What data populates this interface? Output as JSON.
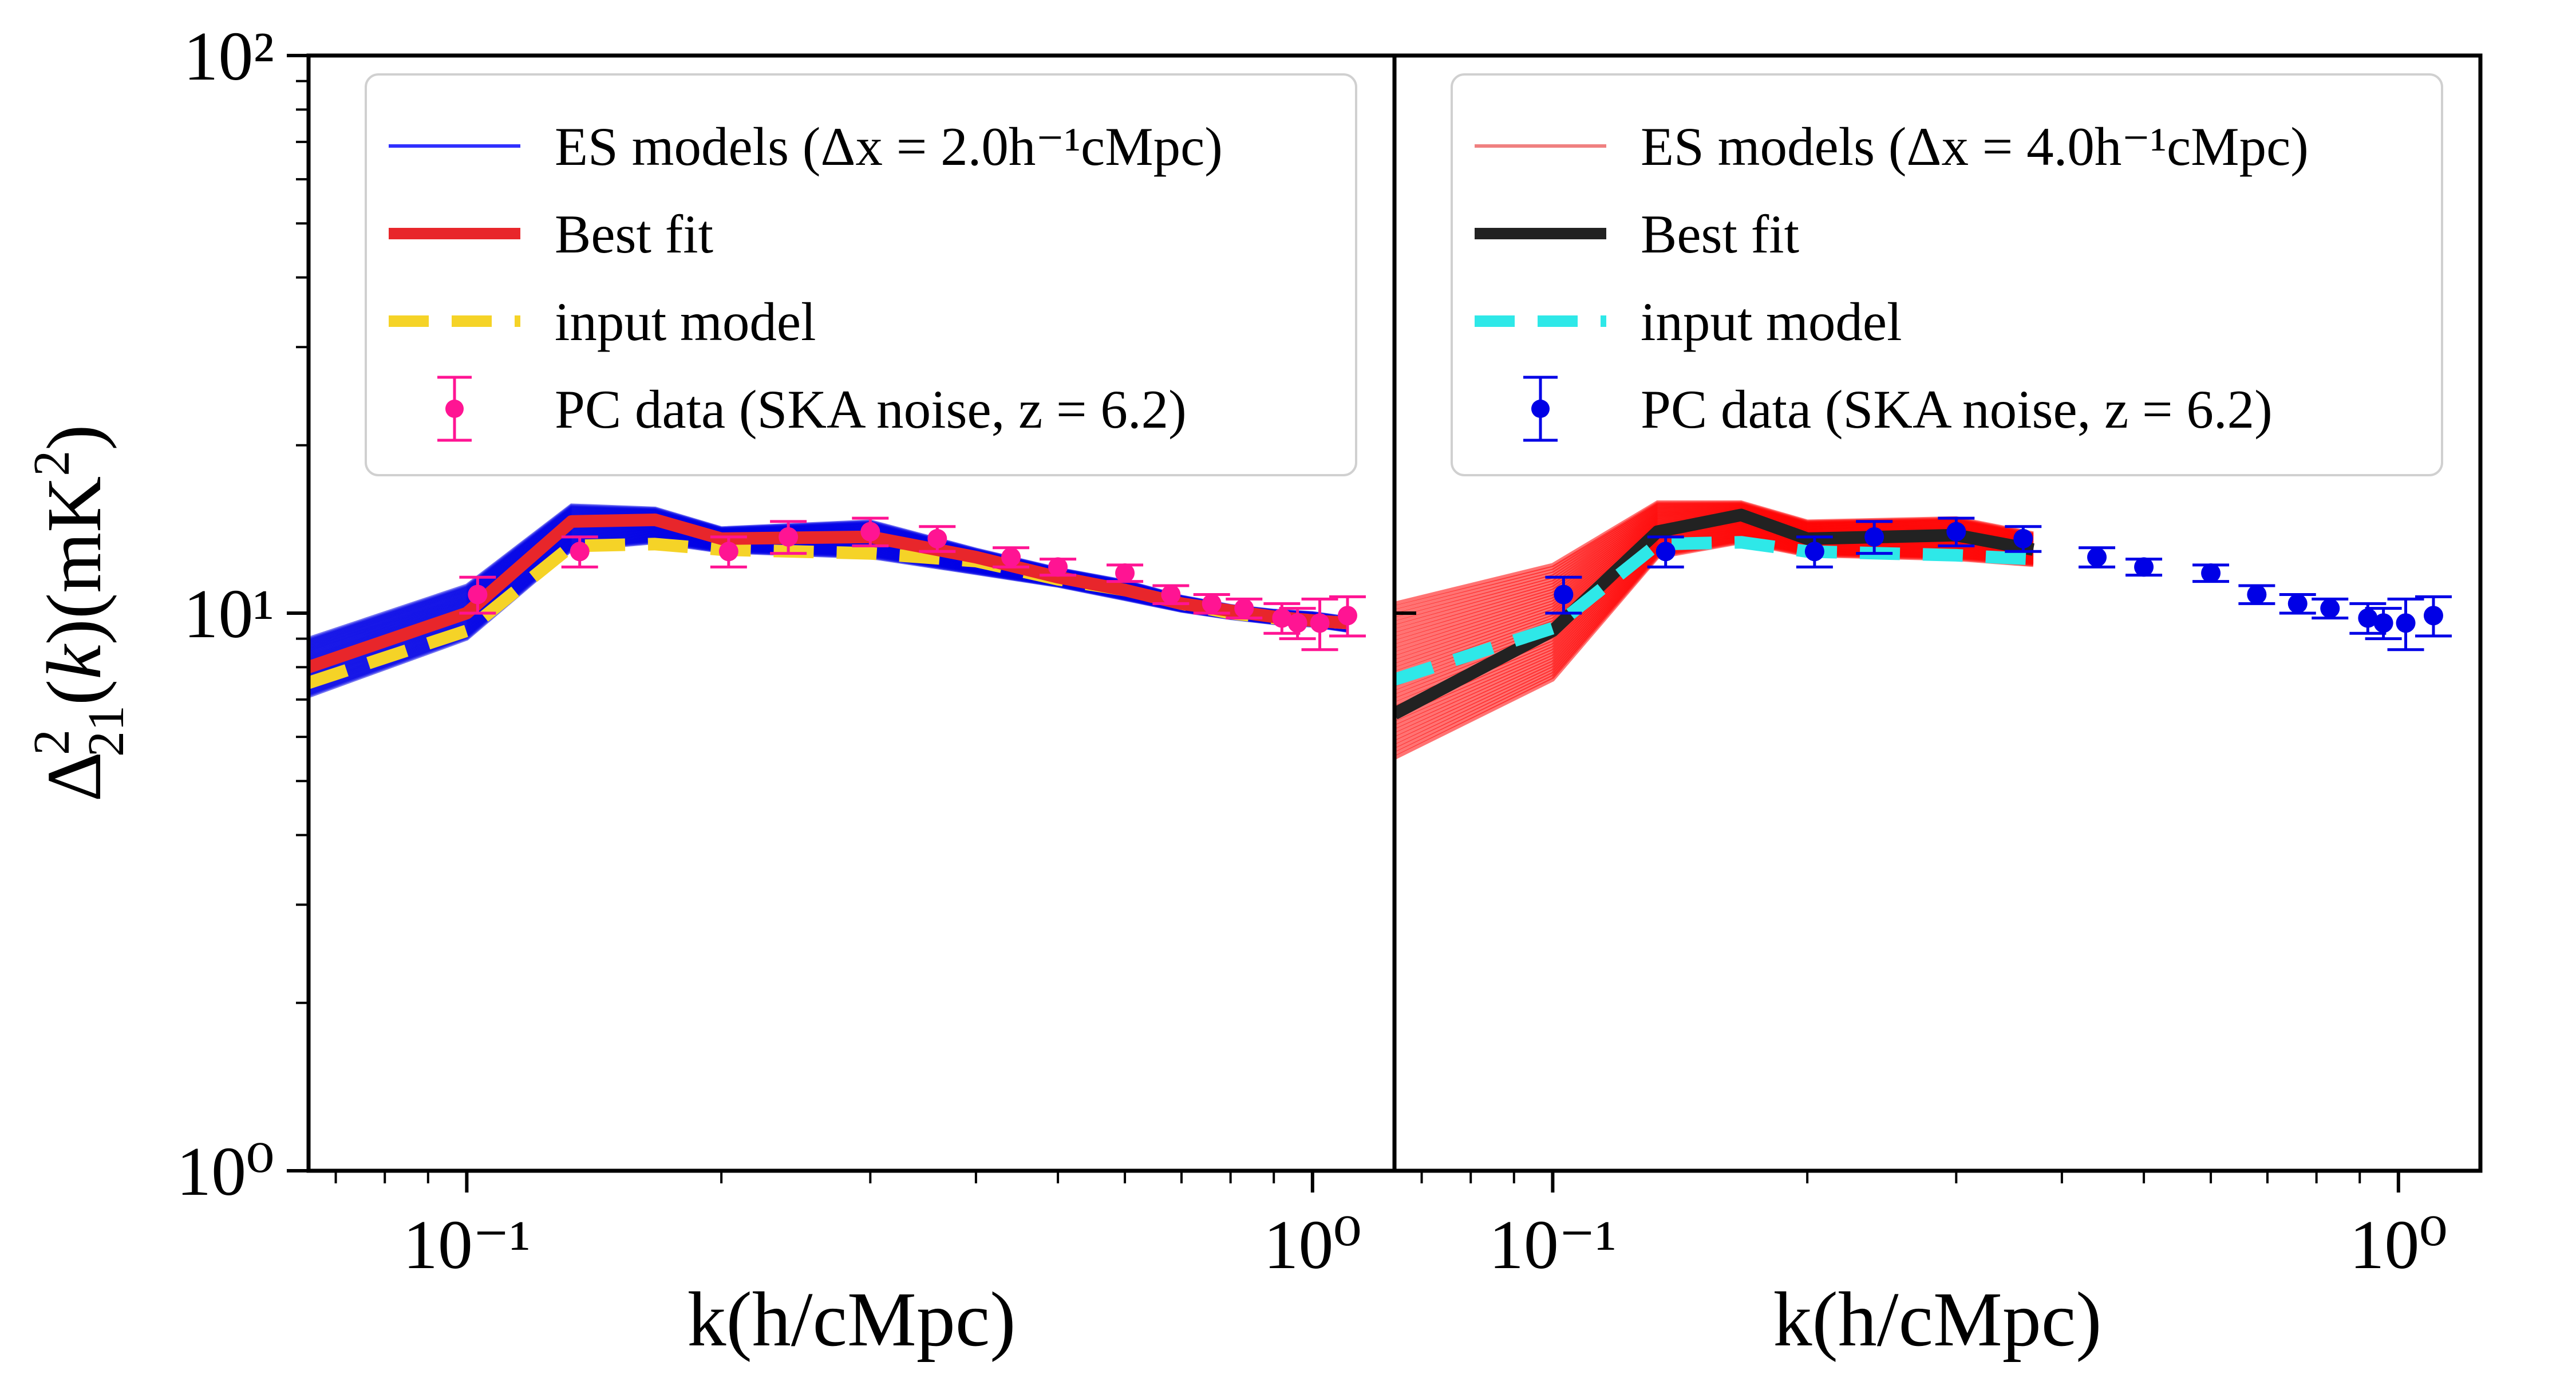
{
  "chart_data": [
    {
      "type": "line",
      "xscale": "log",
      "yscale": "log",
      "xlim": [
        0.065,
        1.25
      ],
      "ylim": [
        1,
        100
      ],
      "grid": false,
      "legend_placement": "top",
      "xlabel": "k(h/cMpc)",
      "ylabel": "Δ²₂₁(k)(mK²)",
      "x_ticks": [
        "10⁻¹",
        "10⁰"
      ],
      "y_ticks": [
        "10⁰",
        "10¹",
        "10²"
      ],
      "legend": [
        {
          "label": "ES models (Δx = 2.0h⁻¹cMpc)",
          "style": "thin",
          "color": "#3030ff"
        },
        {
          "label": "Best fit",
          "style": "solid",
          "color": "#e8262b"
        },
        {
          "label": "input model",
          "style": "dashed",
          "color": "#f5d327"
        },
        {
          "label": "PC data (SKA noise, z = 6.2)",
          "style": "errorbar",
          "color": "#ff1493"
        }
      ],
      "ensemble_band": {
        "color": "#0000e6",
        "x": [
          0.065,
          0.1,
          0.133,
          0.167,
          0.2,
          0.3,
          0.4,
          0.5,
          0.6,
          0.7,
          0.8,
          0.9,
          1.0,
          1.1
        ],
        "upper": [
          9.0,
          11.2,
          15.6,
          15.4,
          14.2,
          14.6,
          13.0,
          12.0,
          11.4,
          10.7,
          10.3,
          10.1,
          10.0,
          9.8
        ],
        "lower": [
          7.1,
          9.0,
          13.0,
          13.4,
          12.9,
          12.6,
          11.8,
          11.2,
          10.6,
          10.1,
          9.8,
          9.6,
          9.5,
          9.3
        ]
      },
      "series": [
        {
          "name": "Best fit",
          "color": "#e8262b",
          "dash": "solid",
          "x": [
            0.065,
            0.1,
            0.133,
            0.167,
            0.2,
            0.3,
            0.4,
            0.5,
            0.6,
            0.7,
            0.8,
            0.9,
            1.0,
            1.1
          ],
          "y": [
            8.0,
            10.0,
            14.6,
            14.7,
            13.6,
            13.7,
            12.6,
            11.6,
            11.0,
            10.4,
            10.1,
            9.85,
            9.7,
            9.6
          ]
        },
        {
          "name": "input model",
          "color": "#f5d327",
          "dash": "dashed",
          "x": [
            0.065,
            0.1,
            0.133,
            0.167,
            0.2,
            0.3,
            0.4,
            0.5,
            0.6,
            0.7,
            0.8,
            0.9,
            1.0,
            1.1
          ],
          "y": [
            7.5,
            9.3,
            13.2,
            13.3,
            13.0,
            12.8,
            12.4,
            11.5,
            11.0,
            10.4,
            10.0,
            9.8,
            9.7,
            9.6
          ]
        }
      ],
      "points": {
        "name": "PC data (SKA noise, z = 6.2)",
        "color": "#ff1493",
        "x": [
          0.103,
          0.136,
          0.204,
          0.24,
          0.3,
          0.36,
          0.44,
          0.5,
          0.6,
          0.68,
          0.76,
          0.83,
          0.92,
          0.96,
          1.02,
          1.1
        ],
        "y": [
          10.8,
          12.9,
          12.9,
          13.7,
          14.0,
          13.6,
          12.6,
          12.1,
          11.8,
          10.8,
          10.4,
          10.2,
          9.8,
          9.6,
          9.6,
          9.9
        ],
        "yerr": [
          0.8,
          0.8,
          0.8,
          0.9,
          0.8,
          0.7,
          0.5,
          0.4,
          0.4,
          0.4,
          0.4,
          0.4,
          0.6,
          0.6,
          1.0,
          0.8
        ]
      }
    },
    {
      "type": "line",
      "xscale": "log",
      "yscale": "log",
      "xlim": [
        0.065,
        1.25
      ],
      "ylim": [
        1,
        100
      ],
      "grid": false,
      "legend_placement": "top",
      "xlabel": "k(h/cMpc)",
      "x_ticks": [
        "10⁻¹",
        "10⁰"
      ],
      "legend": [
        {
          "label": "ES models (Δx = 4.0h⁻¹cMpc)",
          "style": "thin",
          "color": "#f08080"
        },
        {
          "label": "Best fit",
          "style": "solid",
          "color": "#222222"
        },
        {
          "label": "input model",
          "style": "dashed",
          "color": "#2ee8e8"
        },
        {
          "label": "PC data (SKA noise, z = 6.2)",
          "style": "errorbar",
          "color": "#0000e6"
        }
      ],
      "ensemble_band": {
        "color": "#ff0000",
        "x": [
          0.065,
          0.1,
          0.133,
          0.167,
          0.2,
          0.3,
          0.37
        ],
        "upper": [
          10.4,
          12.2,
          15.8,
          15.8,
          14.6,
          14.8,
          13.9
        ],
        "lower": [
          5.5,
          7.6,
          12.6,
          13.4,
          12.7,
          12.5,
          12.2
        ]
      },
      "series": [
        {
          "name": "Best fit",
          "color": "#222222",
          "dash": "solid",
          "x": [
            0.065,
            0.1,
            0.133,
            0.167,
            0.2,
            0.3,
            0.37
          ],
          "y": [
            6.6,
            9.3,
            14.0,
            15.0,
            13.6,
            13.8,
            13.0
          ]
        },
        {
          "name": "input model",
          "color": "#2ee8e8",
          "dash": "dashed",
          "x": [
            0.065,
            0.1,
            0.133,
            0.167,
            0.2,
            0.3,
            0.37
          ],
          "y": [
            7.6,
            9.4,
            13.3,
            13.4,
            12.9,
            12.7,
            12.5
          ]
        }
      ],
      "points": {
        "name": "PC data (SKA noise, z = 6.2)",
        "color": "#0000e6",
        "x": [
          0.103,
          0.136,
          0.204,
          0.24,
          0.3,
          0.36,
          0.44,
          0.5,
          0.6,
          0.68,
          0.76,
          0.83,
          0.92,
          0.96,
          1.02,
          1.1
        ],
        "y": [
          10.8,
          12.9,
          12.9,
          13.7,
          14.0,
          13.6,
          12.6,
          12.1,
          11.8,
          10.8,
          10.4,
          10.2,
          9.8,
          9.6,
          9.6,
          9.9
        ],
        "yerr": [
          0.8,
          0.8,
          0.8,
          0.9,
          0.8,
          0.7,
          0.5,
          0.4,
          0.4,
          0.4,
          0.4,
          0.4,
          0.6,
          0.6,
          1.0,
          0.8
        ]
      }
    }
  ]
}
